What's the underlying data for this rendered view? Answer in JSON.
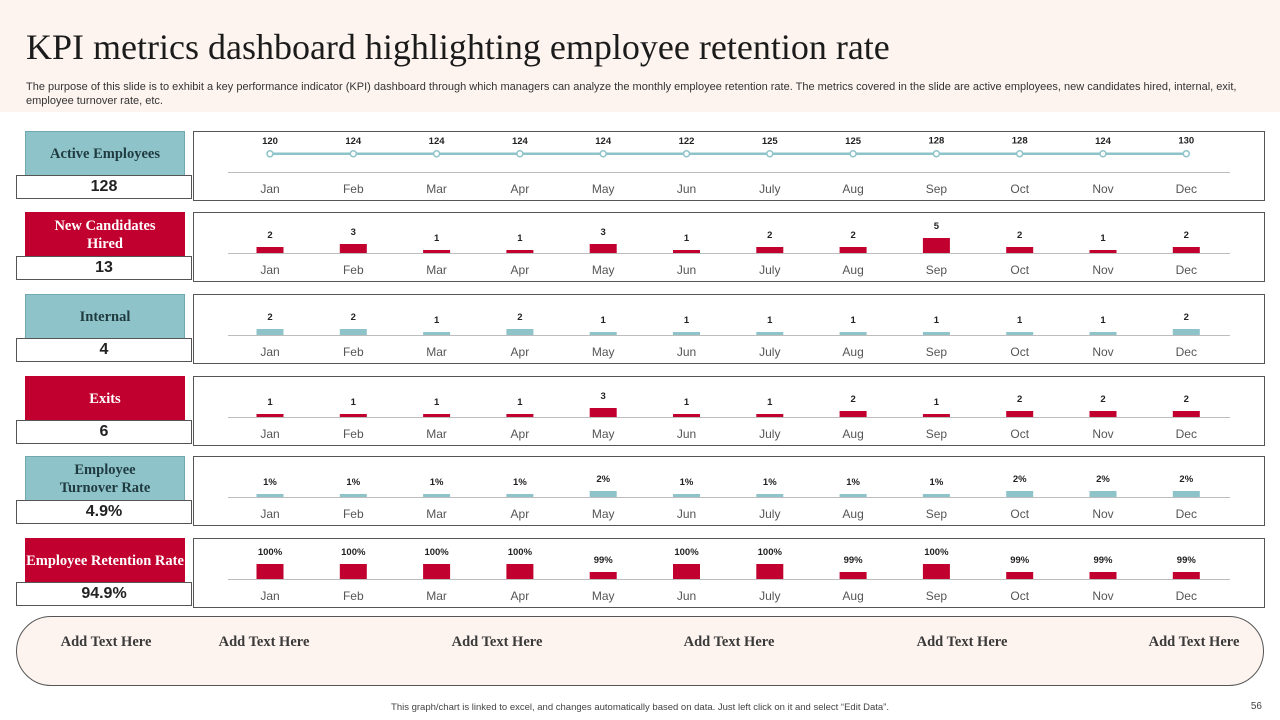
{
  "header": {
    "title": "KPI metrics dashboard highlighting employee retention rate",
    "subtitle": "The purpose of this slide is to exhibit a key performance indicator (KPI) dashboard through which managers can analyze the monthly employee retention rate. The metrics covered in the slide are active employees, new candidates hired, internal, exit,  employee turnover rate,  etc."
  },
  "colors": {
    "teal": "#8ec3c9",
    "red": "#c1002f",
    "line": "#8ec3c9"
  },
  "months": [
    "Jan",
    "Feb",
    "Mar",
    "Apr",
    "May",
    "Jun",
    "July",
    "Aug",
    "Sep",
    "Oct",
    "Nov",
    "Dec"
  ],
  "chart_data": [
    {
      "key": "active",
      "type": "line",
      "title": "Active Employees",
      "color": "teal",
      "summary": "128",
      "categories": [
        "Jan",
        "Feb",
        "Mar",
        "Apr",
        "May",
        "Jun",
        "July",
        "Aug",
        "Sep",
        "Oct",
        "Nov",
        "Dec"
      ],
      "values": [
        120,
        124,
        124,
        124,
        124,
        122,
        125,
        125,
        128,
        128,
        124,
        130
      ],
      "labels": [
        "120",
        "124",
        "124",
        "124",
        "124",
        "122",
        "125",
        "125",
        "128",
        "128",
        "124",
        "130"
      ],
      "ylim": [
        0,
        2000
      ]
    },
    {
      "key": "hired",
      "type": "bar",
      "title": "New Candidates Hired",
      "color": "red",
      "summary": "13",
      "categories": [
        "Jan",
        "Feb",
        "Mar",
        "Apr",
        "May",
        "Jun",
        "July",
        "Aug",
        "Sep",
        "Oct",
        "Nov",
        "Dec"
      ],
      "values": [
        2,
        3,
        1,
        1,
        3,
        1,
        2,
        2,
        5,
        2,
        1,
        2
      ],
      "labels": [
        "2",
        "3",
        "1",
        "1",
        "3",
        "1",
        "2",
        "2",
        "5",
        "2",
        "1",
        "2"
      ],
      "ylim": [
        0,
        5
      ]
    },
    {
      "key": "internal",
      "type": "bar",
      "title": "Internal",
      "color": "teal",
      "summary": "4",
      "categories": [
        "Jan",
        "Feb",
        "Mar",
        "Apr",
        "May",
        "Jun",
        "July",
        "Aug",
        "Sep",
        "Oct",
        "Nov",
        "Dec"
      ],
      "values": [
        2,
        2,
        1,
        2,
        1,
        1,
        1,
        1,
        1,
        1,
        1,
        2
      ],
      "labels": [
        "2",
        "2",
        "1",
        "2",
        "1",
        "1",
        "1",
        "1",
        "1",
        "1",
        "1",
        "2"
      ],
      "ylim": [
        0,
        5
      ]
    },
    {
      "key": "exits",
      "type": "bar",
      "title": "Exits",
      "color": "red",
      "summary": "6",
      "categories": [
        "Jan",
        "Feb",
        "Mar",
        "Apr",
        "May",
        "Jun",
        "July",
        "Aug",
        "Sep",
        "Oct",
        "Nov",
        "Dec"
      ],
      "values": [
        1,
        1,
        1,
        1,
        3,
        1,
        1,
        2,
        1,
        2,
        2,
        2
      ],
      "labels": [
        "1",
        "1",
        "1",
        "1",
        "3",
        "1",
        "1",
        "2",
        "1",
        "2",
        "2",
        "2"
      ],
      "ylim": [
        0,
        5
      ]
    },
    {
      "key": "turnover",
      "type": "bar",
      "title": "Employee Turnover Rate",
      "color": "teal",
      "summary": "4.9%",
      "categories": [
        "Jan",
        "Feb",
        "Mar",
        "Apr",
        "May",
        "Jun",
        "July",
        "Aug",
        "Sep",
        "Oct",
        "Nov",
        "Dec"
      ],
      "values": [
        1,
        1,
        1,
        1,
        2,
        1,
        1,
        1,
        1,
        2,
        2,
        2
      ],
      "labels": [
        "1%",
        "1%",
        "1%",
        "1%",
        "2%",
        "1%",
        "1%",
        "1%",
        "1%",
        "2%",
        "2%",
        "2%"
      ],
      "ylim": [
        0,
        5
      ]
    },
    {
      "key": "retention",
      "type": "bar",
      "title": "Employee Retention Rate",
      "color": "red",
      "summary": "94.9%",
      "categories": [
        "Jan",
        "Feb",
        "Mar",
        "Apr",
        "May",
        "Jun",
        "July",
        "Aug",
        "Sep",
        "Oct",
        "Nov",
        "Dec"
      ],
      "values": [
        100,
        100,
        100,
        100,
        99,
        100,
        100,
        99,
        100,
        99,
        99,
        99
      ],
      "labels": [
        "100%",
        "100%",
        "100%",
        "100%",
        "99%",
        "100%",
        "100%",
        "99%",
        "100%",
        "99%",
        "99%",
        "99%"
      ],
      "ylim": [
        98.5,
        100
      ]
    }
  ],
  "footer": {
    "items": [
      "Add Text Here",
      "Add Text Here",
      "Add Text Here",
      "Add Text Here",
      "Add Text Here",
      "Add Text Here"
    ]
  },
  "note": "This graph/chart is linked to excel, and changes automatically based on data. Just left click on it and select “Edit Data”.",
  "page_number": "56"
}
